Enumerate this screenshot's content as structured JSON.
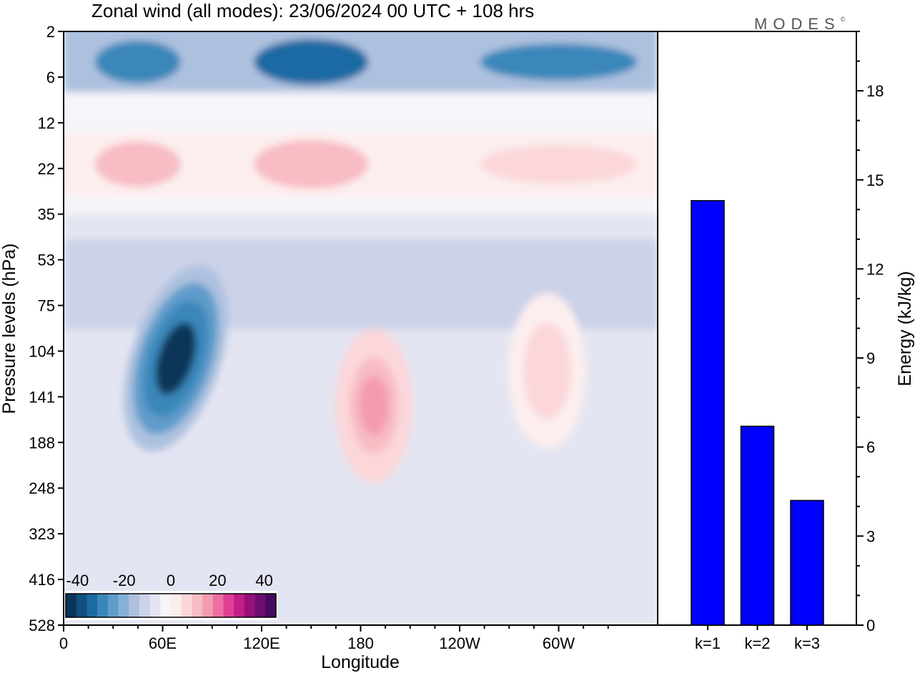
{
  "title": "Zonal wind (all modes):  23/06/2024  00 UTC  + 108 hrs",
  "brand": "MODES",
  "brand_mark": "©",
  "chart_data": [
    {
      "type": "heatmap",
      "title": "Zonal wind (all modes):  23/06/2024  00 UTC  + 108 hrs",
      "xlabel": "Longitude",
      "ylabel": "Pressure levels (hPa)",
      "x_ticks": [
        "0",
        "60E",
        "120E",
        "180",
        "120W",
        "60W"
      ],
      "x_tick_values": [
        0,
        60,
        120,
        180,
        240,
        300
      ],
      "xlim": [
        0,
        360
      ],
      "y_ticks": [
        "2",
        "6",
        "12",
        "22",
        "35",
        "53",
        "75",
        "104",
        "141",
        "188",
        "248",
        "323",
        "416",
        "528"
      ],
      "colorbar": {
        "labels": [
          "-40",
          "-20",
          "0",
          "20",
          "40"
        ],
        "label_values": [
          -40,
          -20,
          0,
          20,
          40
        ],
        "range": [
          -45,
          45
        ],
        "colors": [
          "#0a3558",
          "#11507f",
          "#1b6aa3",
          "#3a87ba",
          "#5e9ccb",
          "#86b1d6",
          "#adc1df",
          "#ccd2e8",
          "#e3e5f2",
          "#f6f5fa",
          "#fdeeee",
          "#fbd7da",
          "#f8bcc4",
          "#f49bb0",
          "#ec6fa2",
          "#df4093",
          "#c01f86",
          "#961178",
          "#6e0d70",
          "#460a5f"
        ]
      },
      "features": [
        {
          "name": "upper easterly band",
          "lon": [
            0,
            360
          ],
          "level_hPa": [
            2,
            8
          ],
          "value": -30
        },
        {
          "name": "westerly band",
          "lon": [
            0,
            360
          ],
          "level_hPa": [
            14,
            30
          ],
          "value": 8
        },
        {
          "name": "tropical easterly jet core",
          "lon": 68,
          "level_hPa": 110,
          "value": -42
        },
        {
          "name": "westerly maximum",
          "lon": 188,
          "level_hPa": 150,
          "value": 14
        },
        {
          "name": "westerly maximum",
          "lon": 293,
          "level_hPa": 120,
          "value": 8
        }
      ]
    },
    {
      "type": "bar",
      "ylabel": "Energy (kJ/kg)",
      "categories": [
        "k=1",
        "k=2",
        "k=3"
      ],
      "values": [
        14.3,
        6.7,
        4.2
      ],
      "ylim": [
        0,
        20
      ],
      "y_ticks": [
        "0",
        "3",
        "6",
        "9",
        "12",
        "15",
        "18"
      ],
      "y_tick_values": [
        0,
        3,
        6,
        9,
        12,
        15,
        18
      ],
      "bar_color": "#0000ff"
    }
  ]
}
